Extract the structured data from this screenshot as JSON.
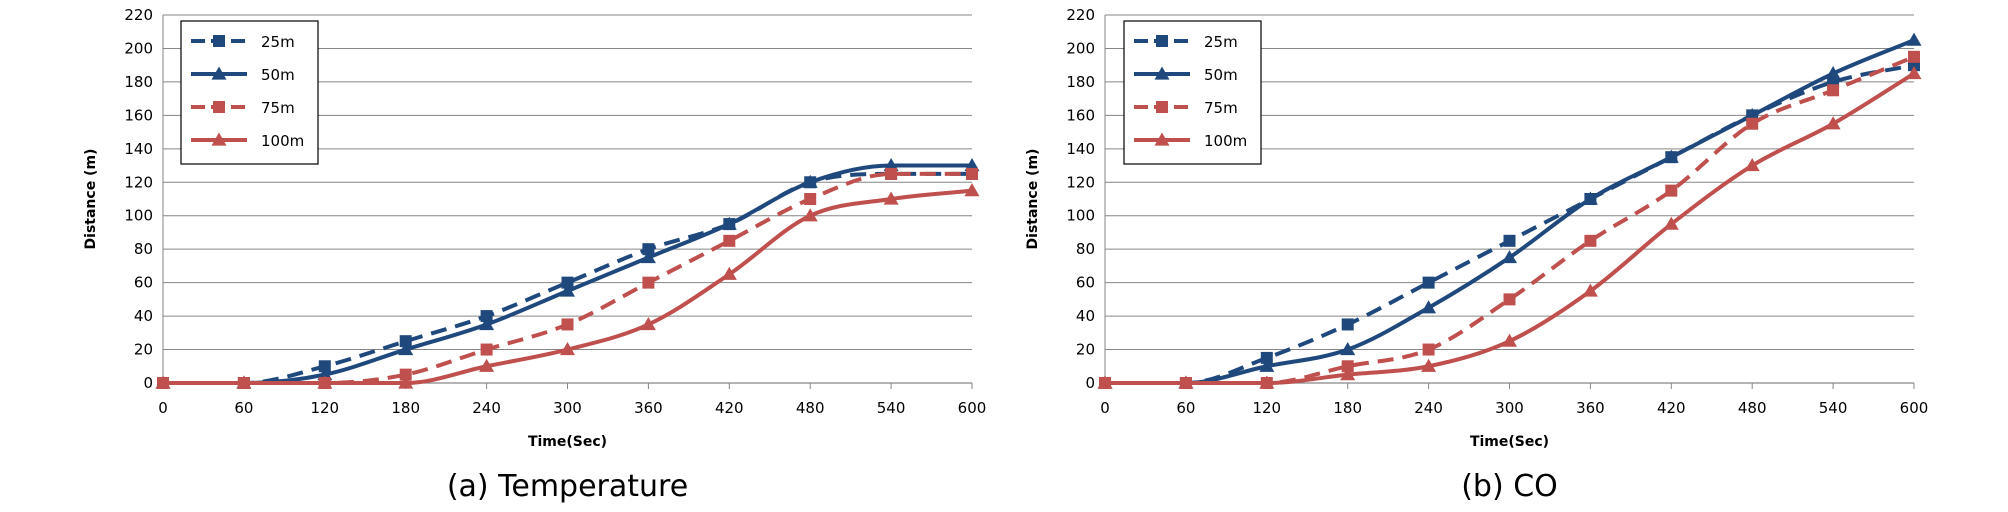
{
  "chart_data": [
    {
      "type": "line",
      "caption": "(a) Temperature",
      "xlabel": "Time(Sec)",
      "ylabel": "Distance  (m)",
      "x": [
        0,
        60,
        120,
        180,
        240,
        300,
        360,
        420,
        480,
        540,
        600
      ],
      "xlim": [
        0,
        600
      ],
      "ylim": [
        0,
        220
      ],
      "yticks": [
        0,
        20,
        40,
        60,
        80,
        100,
        120,
        140,
        160,
        180,
        200,
        220
      ],
      "grid": true,
      "legend_position": "top-left",
      "series": [
        {
          "name": "25m",
          "color": "#1F497D",
          "dash": true,
          "marker": "square",
          "values": [
            0,
            0,
            10,
            25,
            40,
            60,
            80,
            95,
            120,
            125,
            125
          ]
        },
        {
          "name": "50m",
          "color": "#1F497D",
          "dash": false,
          "marker": "triangle",
          "values": [
            0,
            0,
            5,
            20,
            35,
            55,
            75,
            95,
            120,
            130,
            130
          ]
        },
        {
          "name": "75m",
          "color": "#C0504D",
          "dash": true,
          "marker": "square",
          "values": [
            0,
            0,
            0,
            5,
            20,
            35,
            60,
            85,
            110,
            125,
            125
          ]
        },
        {
          "name": "100m",
          "color": "#C0504D",
          "dash": false,
          "marker": "triangle",
          "values": [
            0,
            0,
            0,
            0,
            10,
            20,
            35,
            65,
            100,
            110,
            115
          ]
        }
      ]
    },
    {
      "type": "line",
      "caption": "(b) CO",
      "xlabel": "Time(Sec)",
      "ylabel": "Distance  (m)",
      "x": [
        0,
        60,
        120,
        180,
        240,
        300,
        360,
        420,
        480,
        540,
        600
      ],
      "xlim": [
        0,
        600
      ],
      "ylim": [
        0,
        220
      ],
      "yticks": [
        0,
        20,
        40,
        60,
        80,
        100,
        120,
        140,
        160,
        180,
        200,
        220
      ],
      "grid": true,
      "legend_position": "top-left",
      "series": [
        {
          "name": "25m",
          "color": "#1F497D",
          "dash": true,
          "marker": "square",
          "values": [
            0,
            0,
            15,
            35,
            60,
            85,
            110,
            135,
            160,
            180,
            190
          ]
        },
        {
          "name": "50m",
          "color": "#1F497D",
          "dash": false,
          "marker": "triangle",
          "values": [
            0,
            0,
            10,
            20,
            45,
            75,
            110,
            135,
            160,
            185,
            205
          ]
        },
        {
          "name": "75m",
          "color": "#C0504D",
          "dash": true,
          "marker": "square",
          "values": [
            0,
            0,
            0,
            10,
            20,
            50,
            85,
            115,
            155,
            175,
            195
          ]
        },
        {
          "name": "100m",
          "color": "#C0504D",
          "dash": false,
          "marker": "triangle",
          "values": [
            0,
            0,
            0,
            5,
            10,
            25,
            55,
            95,
            130,
            155,
            185
          ]
        }
      ]
    }
  ]
}
